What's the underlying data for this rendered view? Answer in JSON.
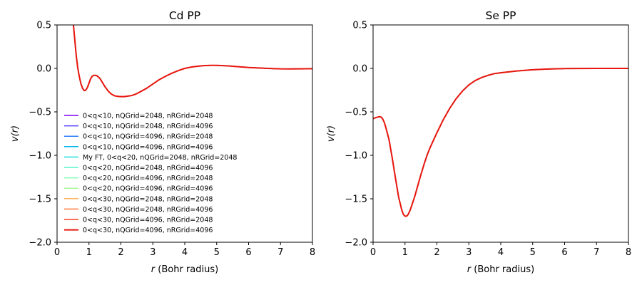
{
  "chart_data": [
    {
      "type": "line",
      "title": "Cd PP",
      "xlabel_italic": "r",
      "xlabel_rest": " (Bohr radius)",
      "ylabel": "v(r)",
      "xlim": [
        0,
        8
      ],
      "ylim": [
        -2.0,
        0.5
      ],
      "xticks": [
        0,
        1,
        2,
        3,
        4,
        5,
        6,
        7,
        8
      ],
      "xtick_labels": [
        "0",
        "1",
        "2",
        "3",
        "4",
        "5",
        "6",
        "7",
        "8"
      ],
      "yticks": [
        0.5,
        0.0,
        -0.5,
        -1.0,
        -1.5,
        -2.0
      ],
      "ytick_labels": [
        "0.5",
        "0.0",
        "−0.5",
        "−1.0",
        "−1.5",
        "−2.0"
      ],
      "grid": false,
      "legend_position": "lower-left",
      "curve": {
        "x": [
          0.5,
          0.55,
          0.6,
          0.65,
          0.7,
          0.75,
          0.8,
          0.85,
          0.9,
          0.95,
          1.0,
          1.05,
          1.1,
          1.15,
          1.2,
          1.25,
          1.3,
          1.35,
          1.4,
          1.5,
          1.6,
          1.7,
          1.8,
          1.9,
          2.0,
          2.1,
          2.2,
          2.3,
          2.4,
          2.5,
          2.6,
          2.8,
          3.0,
          3.2,
          3.4,
          3.6,
          3.8,
          4.0,
          4.2,
          4.4,
          4.6,
          4.8,
          5.0,
          5.2,
          5.4,
          5.6,
          5.8,
          6.0,
          6.3,
          6.6,
          7.0,
          7.3,
          7.6,
          8.0
        ],
        "y": [
          0.55,
          0.35,
          0.15,
          0.0,
          -0.1,
          -0.18,
          -0.23,
          -0.255,
          -0.25,
          -0.22,
          -0.17,
          -0.12,
          -0.09,
          -0.08,
          -0.08,
          -0.085,
          -0.1,
          -0.12,
          -0.15,
          -0.21,
          -0.26,
          -0.295,
          -0.315,
          -0.322,
          -0.325,
          -0.325,
          -0.32,
          -0.315,
          -0.305,
          -0.29,
          -0.27,
          -0.23,
          -0.18,
          -0.13,
          -0.09,
          -0.055,
          -0.025,
          0.0,
          0.015,
          0.025,
          0.032,
          0.035,
          0.035,
          0.032,
          0.028,
          0.022,
          0.016,
          0.01,
          0.005,
          0.0,
          -0.005,
          -0.006,
          -0.005,
          -0.003
        ]
      },
      "series": [
        {
          "name": "0<q<10, nQGrid=2048, nRGrid=2048",
          "color": "#7f00ff"
        },
        {
          "name": "0<q<10, nQGrid=2048, nRGrid=4096",
          "color": "#5641fd"
        },
        {
          "name": "0<q<10, nQGrid=4096, nRGrid=2048",
          "color": "#2c7ef7"
        },
        {
          "name": "0<q<10, nQGrid=4096, nRGrid=4096",
          "color": "#00b5eb"
        },
        {
          "name": "My FT, 0<q<20, nQGrid=2048, nRGrid=2048",
          "color": "#2adddd"
        },
        {
          "name": "0<q<20, nQGrid=2048, nRGrid=4096",
          "color": "#54f6cb"
        },
        {
          "name": "0<q<20, nQGrid=4096, nRGrid=2048",
          "color": "#80feb3"
        },
        {
          "name": "0<q<20, nQGrid=4096, nRGrid=4096",
          "color": "#aaf695"
        },
        {
          "name": "0<q<30, nQGrid=2048, nRGrid=2048",
          "color": "#ffb360"
        },
        {
          "name": "0<q<30, nQGrid=2048, nRGrid=4096",
          "color": "#ff7e41"
        },
        {
          "name": "0<q<30, nQGrid=4096, nRGrid=2048",
          "color": "#ff4121"
        },
        {
          "name": "0<q<30, nQGrid=4096, nRGrid=4096",
          "color": "#e8170f"
        }
      ]
    },
    {
      "type": "line",
      "title": "Se PP",
      "xlabel_italic": "r",
      "xlabel_rest": " (Bohr radius)",
      "ylabel": "v(r)",
      "xlim": [
        0,
        8
      ],
      "ylim": [
        -2.0,
        0.5
      ],
      "xticks": [
        0,
        1,
        2,
        3,
        4,
        5,
        6,
        7,
        8
      ],
      "xtick_labels": [
        "0",
        "1",
        "2",
        "3",
        "4",
        "5",
        "6",
        "7",
        "8"
      ],
      "yticks": [
        0.5,
        0.0,
        -0.5,
        -1.0,
        -1.5,
        -2.0
      ],
      "ytick_labels": [
        "0.5",
        "0.0",
        "−0.5",
        "−1.0",
        "−1.5",
        "−2.0"
      ],
      "grid": false,
      "curve": {
        "x": [
          0.0,
          0.05,
          0.1,
          0.15,
          0.2,
          0.25,
          0.3,
          0.35,
          0.4,
          0.5,
          0.6,
          0.7,
          0.8,
          0.9,
          0.95,
          1.0,
          1.05,
          1.1,
          1.15,
          1.2,
          1.3,
          1.4,
          1.5,
          1.6,
          1.7,
          1.8,
          2.0,
          2.2,
          2.4,
          2.6,
          2.8,
          3.0,
          3.2,
          3.4,
          3.6,
          3.8,
          4.0,
          4.5,
          5.0,
          5.5,
          6.0,
          7.0,
          8.0
        ],
        "y": [
          -0.58,
          -0.57,
          -0.565,
          -0.56,
          -0.555,
          -0.56,
          -0.58,
          -0.62,
          -0.68,
          -0.82,
          -1.03,
          -1.26,
          -1.48,
          -1.63,
          -1.68,
          -1.7,
          -1.7,
          -1.68,
          -1.64,
          -1.59,
          -1.48,
          -1.35,
          -1.22,
          -1.1,
          -0.99,
          -0.9,
          -0.74,
          -0.59,
          -0.46,
          -0.35,
          -0.26,
          -0.19,
          -0.14,
          -0.105,
          -0.08,
          -0.06,
          -0.05,
          -0.03,
          -0.015,
          -0.007,
          -0.002,
          0.0,
          0.0
        ]
      },
      "series": [
        {
          "color": "#7f00ff"
        },
        {
          "color": "#5641fd"
        },
        {
          "color": "#2c7ef7"
        },
        {
          "color": "#00b5eb"
        },
        {
          "color": "#2adddd"
        },
        {
          "color": "#54f6cb"
        },
        {
          "color": "#80feb3"
        },
        {
          "color": "#aaf695"
        },
        {
          "color": "#ffb360"
        },
        {
          "color": "#ff7e41"
        },
        {
          "color": "#ff4121"
        },
        {
          "color": "#e8170f"
        }
      ]
    }
  ]
}
